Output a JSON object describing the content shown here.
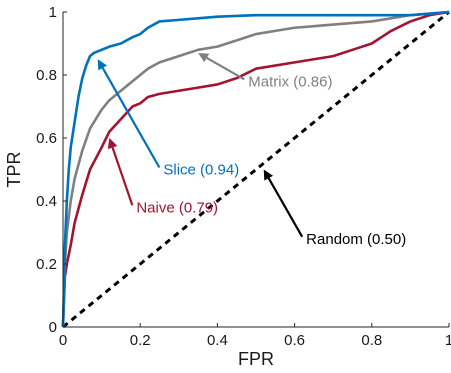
{
  "chart_data": {
    "type": "line",
    "xlabel": "FPR",
    "ylabel": "TPR",
    "xlim": [
      0,
      1
    ],
    "ylim": [
      0,
      1
    ],
    "x_ticks": [
      0,
      0.2,
      0.4,
      0.6,
      0.8,
      1
    ],
    "y_ticks": [
      0,
      0.2,
      0.4,
      0.6,
      0.8,
      1
    ],
    "x_tick_labels": [
      "0",
      "0.2",
      "0.4",
      "0.6",
      "0.8",
      "1"
    ],
    "y_tick_labels": [
      "0",
      "0.2",
      "0.4",
      "0.6",
      "0.8",
      "1"
    ],
    "grid": false,
    "series": [
      {
        "name": "Slice (0.94)",
        "color": "#0072BD",
        "dashed": false,
        "x": [
          0,
          0.005,
          0.01,
          0.015,
          0.02,
          0.03,
          0.04,
          0.05,
          0.06,
          0.07,
          0.08,
          0.1,
          0.12,
          0.15,
          0.18,
          0.2,
          0.22,
          0.25,
          0.3,
          0.35,
          0.4,
          0.5,
          0.6,
          0.7,
          0.8,
          0.9,
          1.0
        ],
        "y": [
          0,
          0.26,
          0.4,
          0.5,
          0.57,
          0.65,
          0.73,
          0.79,
          0.83,
          0.86,
          0.87,
          0.88,
          0.89,
          0.9,
          0.92,
          0.93,
          0.95,
          0.97,
          0.975,
          0.98,
          0.985,
          0.99,
          0.99,
          0.99,
          0.99,
          0.99,
          1.0
        ]
      },
      {
        "name": "Matrix (0.86)",
        "color": "#808080",
        "dashed": false,
        "x": [
          0,
          0.005,
          0.01,
          0.02,
          0.03,
          0.05,
          0.07,
          0.09,
          0.1,
          0.12,
          0.15,
          0.18,
          0.2,
          0.22,
          0.25,
          0.3,
          0.35,
          0.4,
          0.45,
          0.5,
          0.55,
          0.6,
          0.65,
          0.7,
          0.8,
          0.9,
          1.0
        ],
        "y": [
          0,
          0.2,
          0.3,
          0.4,
          0.47,
          0.56,
          0.63,
          0.67,
          0.69,
          0.72,
          0.75,
          0.78,
          0.8,
          0.82,
          0.84,
          0.86,
          0.88,
          0.89,
          0.91,
          0.93,
          0.94,
          0.95,
          0.955,
          0.96,
          0.97,
          0.99,
          1.0
        ]
      },
      {
        "name": "Naive (0.79)",
        "color": "#A2142F",
        "dashed": false,
        "x": [
          0,
          0.005,
          0.01,
          0.02,
          0.03,
          0.05,
          0.07,
          0.1,
          0.12,
          0.15,
          0.18,
          0.2,
          0.22,
          0.25,
          0.3,
          0.35,
          0.4,
          0.45,
          0.5,
          0.6,
          0.7,
          0.75,
          0.8,
          0.85,
          0.9,
          0.95,
          1.0
        ],
        "y": [
          0,
          0.16,
          0.2,
          0.26,
          0.33,
          0.42,
          0.5,
          0.57,
          0.62,
          0.66,
          0.7,
          0.71,
          0.73,
          0.74,
          0.75,
          0.76,
          0.77,
          0.79,
          0.82,
          0.84,
          0.86,
          0.88,
          0.9,
          0.94,
          0.97,
          0.99,
          1.0
        ]
      },
      {
        "name": "Random (0.50)",
        "color": "#000000",
        "dashed": true,
        "x": [
          0,
          1
        ],
        "y": [
          0,
          1
        ]
      }
    ],
    "annotations": [
      {
        "text": "Slice (0.94)",
        "color": "#0072BD",
        "arrow_to": [
          0.09,
          0.85
        ],
        "label_at": [
          0.26,
          0.5
        ]
      },
      {
        "text": "Matrix (0.86)",
        "color": "#808080",
        "arrow_to": [
          0.35,
          0.87
        ],
        "label_at": [
          0.48,
          0.78
        ]
      },
      {
        "text": "Naive (0.79)",
        "color": "#A2142F",
        "arrow_to": [
          0.12,
          0.6
        ],
        "label_at": [
          0.19,
          0.38
        ]
      },
      {
        "text": "Random (0.50)",
        "color": "#000000",
        "arrow_to": [
          0.52,
          0.5
        ],
        "label_at": [
          0.63,
          0.28
        ]
      }
    ]
  }
}
